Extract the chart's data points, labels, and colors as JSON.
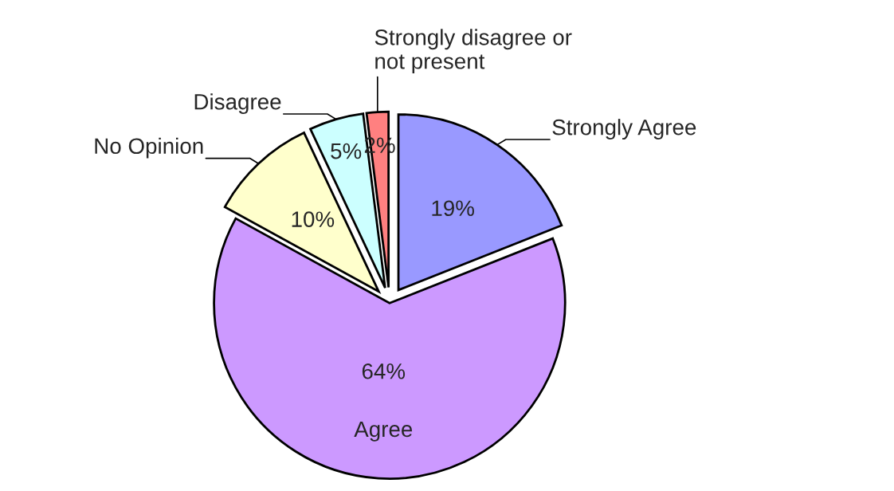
{
  "chart_data": {
    "type": "pie",
    "categories": [
      "Strongly Agree",
      "Agree",
      "No Opinion",
      "Disagree",
      "Strongly disagree or\nnot present"
    ],
    "values": [
      19,
      64,
      10,
      5,
      2
    ],
    "colors": [
      "#9999ff",
      "#cc99ff",
      "#ffffcc",
      "#ccffff",
      "#ff8080"
    ],
    "value_labels": [
      "19%",
      "64%",
      "10%",
      "5%",
      "2%"
    ],
    "legend": false
  }
}
